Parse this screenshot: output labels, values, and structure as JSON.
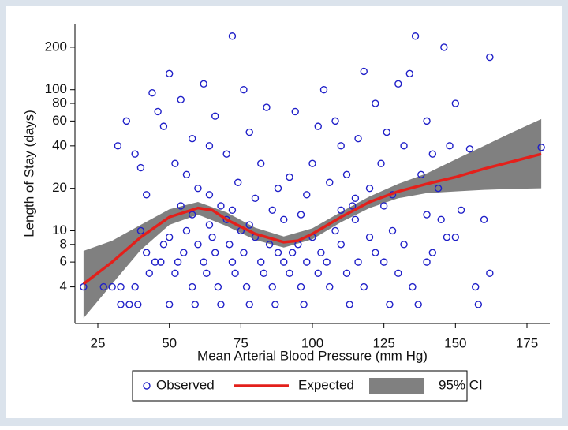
{
  "chart_data": {
    "type": "scatter",
    "x_label": "Mean Arterial Blood Pressure  (mm Hg)",
    "y_label": "Length of Stay (days)",
    "xlim": [
      17,
      183
    ],
    "ylim": [
      2.2,
      294
    ],
    "xticks": [
      25,
      50,
      75,
      100,
      125,
      150,
      175
    ],
    "yticks": [
      4,
      6,
      8,
      10,
      20,
      40,
      60,
      80,
      100,
      200
    ],
    "log_y": true,
    "grid": false,
    "legend_position": "bottom",
    "series": [
      {
        "name": "Observed",
        "type": "scatter",
        "color": "#1f1fc8",
        "x": [
          20,
          27,
          30,
          33,
          33,
          36,
          38,
          39,
          40,
          42,
          43,
          45,
          47,
          48,
          50,
          50,
          52,
          53,
          55,
          56,
          58,
          59,
          60,
          62,
          63,
          64,
          65,
          66,
          67,
          68,
          70,
          71,
          72,
          73,
          75,
          76,
          77,
          78,
          80,
          82,
          83,
          85,
          86,
          87,
          88,
          90,
          92,
          93,
          95,
          96,
          97,
          98,
          100,
          102,
          103,
          105,
          106,
          108,
          110,
          112,
          113,
          115,
          116,
          118,
          120,
          122,
          125,
          127,
          128,
          130,
          132,
          135,
          137,
          140,
          142,
          145,
          147,
          157,
          158,
          162,
          35,
          32,
          38,
          40,
          42,
          44,
          46,
          48,
          50,
          52,
          54,
          56,
          58,
          60,
          62,
          64,
          66,
          68,
          70,
          72,
          74,
          76,
          78,
          80,
          82,
          84,
          86,
          88,
          90,
          92,
          94,
          96,
          98,
          100,
          102,
          104,
          106,
          108,
          110,
          112,
          114,
          116,
          118,
          120,
          122,
          124,
          126,
          128,
          130,
          132,
          134,
          136,
          138,
          140,
          142,
          144,
          146,
          148,
          150,
          152,
          155,
          160,
          162,
          180,
          54,
          58,
          64,
          72,
          78,
          110,
          115,
          125,
          140,
          150
        ],
        "y": [
          4,
          4,
          4,
          3,
          4,
          3,
          4,
          3,
          10,
          7,
          5,
          6,
          6,
          8,
          3,
          9,
          5,
          6,
          7,
          10,
          4,
          3,
          8,
          6,
          5,
          11,
          9,
          7,
          4,
          3,
          12,
          8,
          6,
          5,
          10,
          7,
          4,
          3,
          9,
          6,
          5,
          8,
          4,
          3,
          7,
          6,
          5,
          7,
          8,
          4,
          3,
          6,
          9,
          5,
          7,
          6,
          4,
          10,
          8,
          5,
          3,
          12,
          6,
          4,
          9,
          7,
          6,
          3,
          10,
          5,
          8,
          4,
          3,
          6,
          7,
          12,
          9,
          4,
          3,
          5,
          60,
          40,
          35,
          28,
          18,
          95,
          70,
          55,
          130,
          30,
          85,
          25,
          45,
          20,
          110,
          40,
          65,
          15,
          35,
          240,
          22,
          100,
          50,
          17,
          30,
          75,
          14,
          20,
          12,
          24,
          70,
          13,
          18,
          30,
          55,
          100,
          22,
          60,
          40,
          25,
          15,
          45,
          135,
          20,
          80,
          30,
          50,
          18,
          110,
          40,
          130,
          240,
          25,
          60,
          35,
          20,
          200,
          40,
          80,
          14,
          38,
          12,
          170,
          39,
          15,
          13,
          18,
          14,
          11,
          14,
          17,
          15,
          13,
          9
        ]
      },
      {
        "name": "Expected",
        "type": "line",
        "color": "#e3201b",
        "x": [
          20,
          30,
          40,
          50,
          60,
          65,
          70,
          80,
          90,
          95,
          100,
          110,
          120,
          130,
          140,
          150,
          160,
          170,
          180
        ],
        "y": [
          4.2,
          6,
          9,
          12.5,
          14.5,
          14,
          12,
          9.5,
          8.3,
          8.5,
          9.5,
          12.5,
          16,
          19,
          21.5,
          24,
          27.5,
          31,
          35
        ]
      },
      {
        "name": "95% CI",
        "type": "area",
        "color": "#808080",
        "x": [
          20,
          30,
          40,
          50,
          60,
          70,
          80,
          90,
          100,
          110,
          120,
          130,
          140,
          150,
          160,
          170,
          180
        ],
        "y_low": [
          2.4,
          4.2,
          7.3,
          11,
          13,
          10.8,
          8.6,
          7.6,
          8.7,
          11.5,
          14.5,
          17,
          18.5,
          19,
          19.5,
          19.8,
          20
        ],
        "y_high": [
          7.2,
          8.5,
          11,
          14.2,
          16,
          13.5,
          10.5,
          9.1,
          10.4,
          13.6,
          17.5,
          21.5,
          25.5,
          32,
          40,
          50,
          62
        ]
      }
    ]
  }
}
